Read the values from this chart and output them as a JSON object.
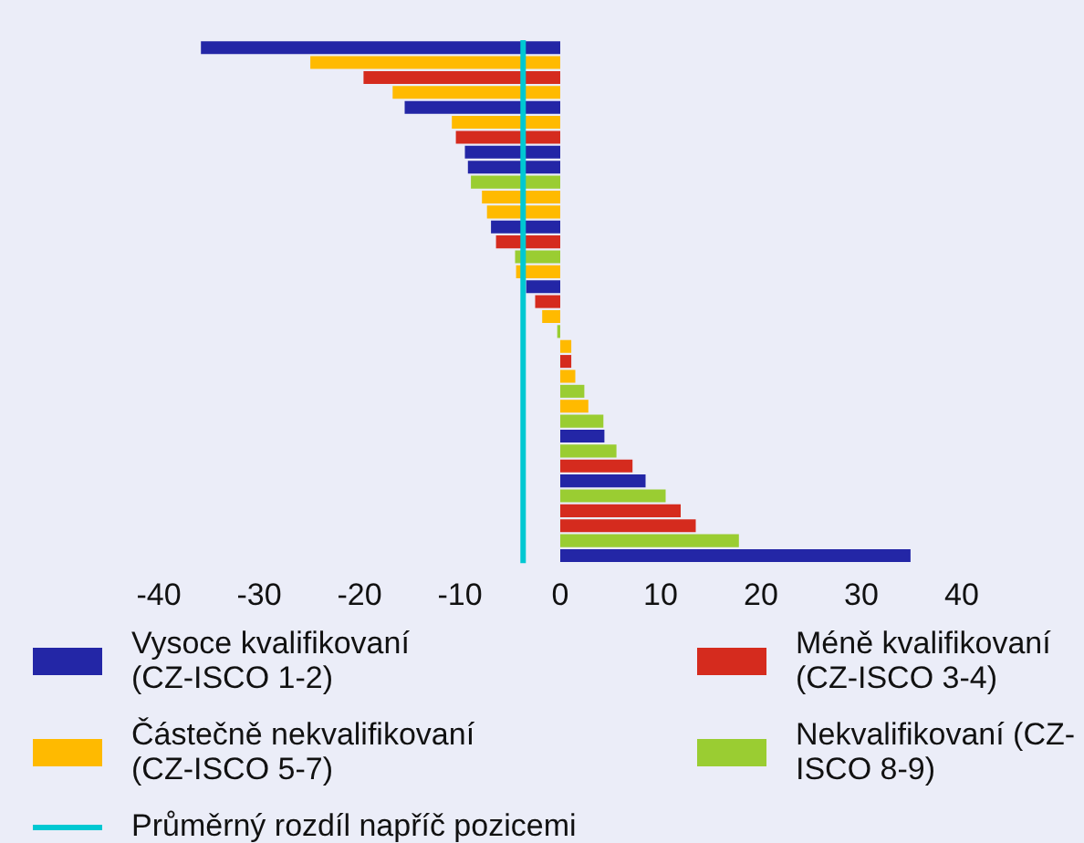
{
  "chart_data": {
    "type": "bar",
    "orientation": "horizontal",
    "stacked": true,
    "categories": [
      null,
      null,
      null,
      null,
      null,
      null,
      null,
      null,
      null,
      null,
      null,
      null,
      null,
      null,
      null,
      null,
      null,
      null,
      null,
      null,
      null,
      null,
      null,
      null,
      null,
      null,
      null,
      null,
      null,
      null,
      null,
      null,
      null,
      null,
      null
    ],
    "series": [
      {
        "name": "Vysoce kvalifikovaní (CZ-ISCO 1-2)",
        "color": "#2326a6",
        "values": [
          -35.8,
          null,
          null,
          null,
          -15.5,
          null,
          null,
          -9.5,
          -9.2,
          null,
          null,
          null,
          -6.9,
          null,
          null,
          null,
          -3.4,
          null,
          null,
          null,
          null,
          null,
          null,
          null,
          null,
          null,
          4.4,
          null,
          null,
          8.5,
          null,
          null,
          null,
          null,
          34.9
        ]
      },
      {
        "name": "Méně kvalifikovaní (CZ-ISCO 3-4)",
        "color": "#d52b1e",
        "values": [
          null,
          null,
          -19.6,
          null,
          null,
          null,
          -10.4,
          null,
          null,
          null,
          null,
          null,
          null,
          -6.4,
          null,
          null,
          null,
          -2.5,
          null,
          null,
          null,
          1.1,
          null,
          null,
          null,
          null,
          null,
          null,
          7.2,
          null,
          null,
          12,
          13.5,
          null,
          null
        ]
      },
      {
        "name": "Částečně nekvalifikovaní (CZ-ISCO 5-7)",
        "color": "#ffba00",
        "values": [
          null,
          -24.9,
          null,
          -16.7,
          null,
          -10.8,
          null,
          null,
          null,
          null,
          -7.8,
          -7.3,
          null,
          null,
          null,
          -4.4,
          null,
          null,
          -1.8,
          null,
          1.1,
          null,
          1.5,
          null,
          2.8,
          null,
          null,
          null,
          null,
          null,
          null,
          null,
          null,
          null,
          null
        ]
      },
      {
        "name": "Nekvalifikovaní (CZ-ISCO 8-9)",
        "color": "#9acd32",
        "values": [
          null,
          null,
          null,
          null,
          null,
          null,
          null,
          null,
          null,
          -8.9,
          null,
          null,
          null,
          null,
          -4.5,
          null,
          null,
          null,
          null,
          -0.3,
          null,
          null,
          null,
          2.4,
          null,
          4.3,
          null,
          5.6,
          null,
          null,
          10.5,
          null,
          null,
          17.8,
          null
        ]
      }
    ],
    "xlim": [
      -40,
      40
    ],
    "xticks": [
      -40,
      -30,
      -20,
      -10,
      0,
      10,
      20,
      30,
      40
    ],
    "ref_lines": [
      {
        "axis": "x",
        "value": -3.7,
        "label": "Průměrný rozdíl napříč pozicemi",
        "color": "#00c8d2"
      }
    ],
    "grid": false,
    "legend": "bottom"
  }
}
